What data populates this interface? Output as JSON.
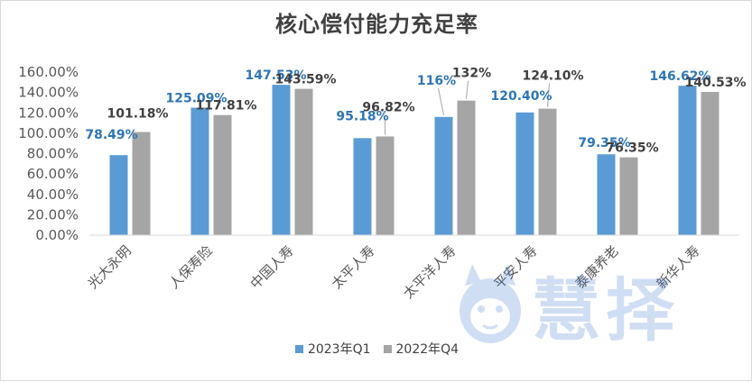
{
  "page": {
    "title": "核心偿付能力充足率"
  },
  "colors": {
    "series_q1": "#5b9bd5",
    "series_q4": "#a5a5a5",
    "label_q1": "#2e75b6",
    "label_q4": "#404040",
    "axis_text": "#595959",
    "gridline": "#d9d9d9"
  },
  "legend": {
    "items": [
      {
        "label": "2023年Q1"
      },
      {
        "label": "2022年Q4"
      }
    ]
  },
  "watermark": {
    "text": "慧择",
    "icon": "mascot-icon"
  },
  "chart_data": {
    "type": "bar",
    "title": "核心偿付能力充足率",
    "categories": [
      "光大永明",
      "人保寿险",
      "中国人寿",
      "太平人寿",
      "太平洋人寿",
      "平安人寿",
      "泰康养老",
      "新华人寿"
    ],
    "series": [
      {
        "name": "2023年Q1",
        "values": [
          78.49,
          125.09,
          147.53,
          95.18,
          116,
          120.4,
          79.35,
          146.62
        ],
        "labels": [
          "78.49%",
          "125.09%",
          "147.53%",
          "95.18%",
          "116%",
          "120.40%",
          "79.35%",
          "146.62%"
        ]
      },
      {
        "name": "2022年Q4",
        "values": [
          101.18,
          117.81,
          143.59,
          96.82,
          132,
          124.1,
          76.35,
          140.53
        ],
        "labels": [
          "101.18%",
          "117.81%",
          "143.59%",
          "96.82%",
          "132%",
          "124.10%",
          "76.35%",
          "140.53%"
        ]
      }
    ],
    "ylim": [
      0,
      160
    ],
    "y_ticks": [
      "0.00%",
      "20.00%",
      "40.00%",
      "60.00%",
      "80.00%",
      "100.00%",
      "120.00%",
      "140.00%",
      "160.00%"
    ],
    "grid": false,
    "legend_position": "bottom"
  }
}
